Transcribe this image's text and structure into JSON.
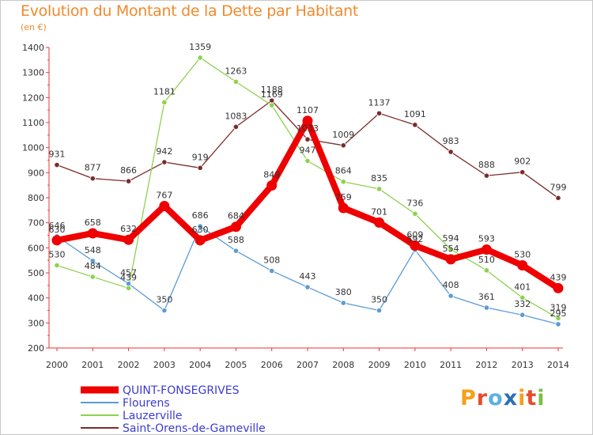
{
  "title": "Evolution du Montant de la Dette par Habitant",
  "unit": "(en €)",
  "logo": {
    "text": "Proxiti",
    "colors": [
      "#f4a11b",
      "#e84b2c",
      "#5cb1e0",
      "#2c6fb5",
      "#f4a11b",
      "#e84b2c",
      "#7ac043"
    ]
  },
  "chart_data": {
    "type": "line",
    "title": "Evolution du Montant de la Dette par Habitant",
    "ylabel": "(en €)",
    "xlabel": "",
    "x": [
      "2000",
      "2001",
      "2002",
      "2003",
      "2004",
      "2005",
      "2006",
      "2007",
      "2008",
      "2009",
      "2010",
      "2011",
      "2012",
      "2013",
      "2014"
    ],
    "ylim": [
      200,
      1400
    ],
    "yticks": [
      200,
      300,
      400,
      500,
      600,
      700,
      800,
      900,
      1000,
      1100,
      1200,
      1300,
      1400
    ],
    "grid": false,
    "legend": "bottom-left",
    "series": [
      {
        "name": "QUINT-FONSEGRIVES",
        "color": "#ee0000",
        "values": [
          630,
          658,
          632,
          767,
          630,
          684,
          849,
          1107,
          759,
          701,
          609,
          554,
          593,
          530,
          439
        ]
      },
      {
        "name": "Flourens",
        "color": "#5b9bd5",
        "values": [
          646,
          548,
          457,
          350,
          686,
          588,
          508,
          443,
          380,
          350,
          592,
          408,
          361,
          332,
          295
        ]
      },
      {
        "name": "Lauzerville",
        "color": "#8fd14f",
        "values": [
          530,
          484,
          439,
          1181,
          1359,
          1263,
          1169,
          947,
          864,
          835,
          736,
          594,
          510,
          401,
          319
        ]
      },
      {
        "name": "Saint-Orens-de-Gameville",
        "color": "#7b2b2b",
        "values": [
          931,
          877,
          866,
          942,
          919,
          1083,
          1188,
          1033,
          1009,
          1137,
          1091,
          983,
          888,
          902,
          799
        ]
      }
    ]
  }
}
